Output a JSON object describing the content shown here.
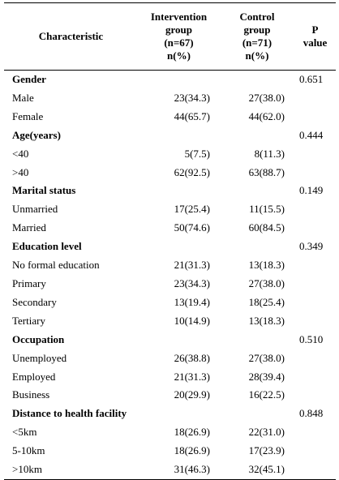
{
  "header": {
    "characteristic": "Characteristic",
    "intervention": [
      "Intervention",
      "group",
      "(n=67)",
      "n(%)"
    ],
    "control": [
      "Control",
      "group",
      "(n=71)",
      "n(%)"
    ],
    "p_value": [
      "P",
      "value"
    ]
  },
  "sections": [
    {
      "title": "Gender",
      "p": "0.651",
      "rows": [
        {
          "label": "Male",
          "intervention": "23(34.3)",
          "control": "27(38.0)"
        },
        {
          "label": "Female",
          "intervention": "44(65.7)",
          "control": "44(62.0)"
        }
      ]
    },
    {
      "title": "Age(years)",
      "p": "0.444",
      "rows": [
        {
          "label": "<40",
          "intervention": "5(7.5)",
          "control": "8(11.3)"
        },
        {
          "label": ">40",
          "intervention": "62(92.5)",
          "control": "63(88.7)"
        }
      ]
    },
    {
      "title": "Marital status",
      "p": "0.149",
      "rows": [
        {
          "label": "Unmarried",
          "intervention": "17(25.4)",
          "control": "11(15.5)"
        },
        {
          "label": "Married",
          "intervention": "50(74.6)",
          "control": "60(84.5)"
        }
      ]
    },
    {
      "title": "Education level",
      "p": "0.349",
      "rows": [
        {
          "label": "No formal education",
          "intervention": "21(31.3)",
          "control": "13(18.3)"
        },
        {
          "label": "Primary",
          "intervention": "23(34.3)",
          "control": "27(38.0)"
        },
        {
          "label": "Secondary",
          "intervention": "13(19.4)",
          "control": "18(25.4)"
        },
        {
          "label": "Tertiary",
          "intervention": "10(14.9)",
          "control": "13(18.3)"
        }
      ]
    },
    {
      "title": "Occupation",
      "p": "0.510",
      "rows": [
        {
          "label": "Unemployed",
          "intervention": "26(38.8)",
          "control": "27(38.0)"
        },
        {
          "label": "Employed",
          "intervention": "21(31.3)",
          "control": "28(39.4)"
        },
        {
          "label": "Business",
          "intervention": "20(29.9)",
          "control": "16(22.5)"
        }
      ]
    },
    {
      "title": "Distance to health facility",
      "p": "0.848",
      "rows": [
        {
          "label": "<5km",
          "intervention": "18(26.9)",
          "control": "22(31.0)"
        },
        {
          "label": "5-10km",
          "intervention": "18(26.9)",
          "control": "17(23.9)"
        },
        {
          "label": ">10km",
          "intervention": "31(46.3)",
          "control": "32(45.1)"
        }
      ]
    }
  ]
}
